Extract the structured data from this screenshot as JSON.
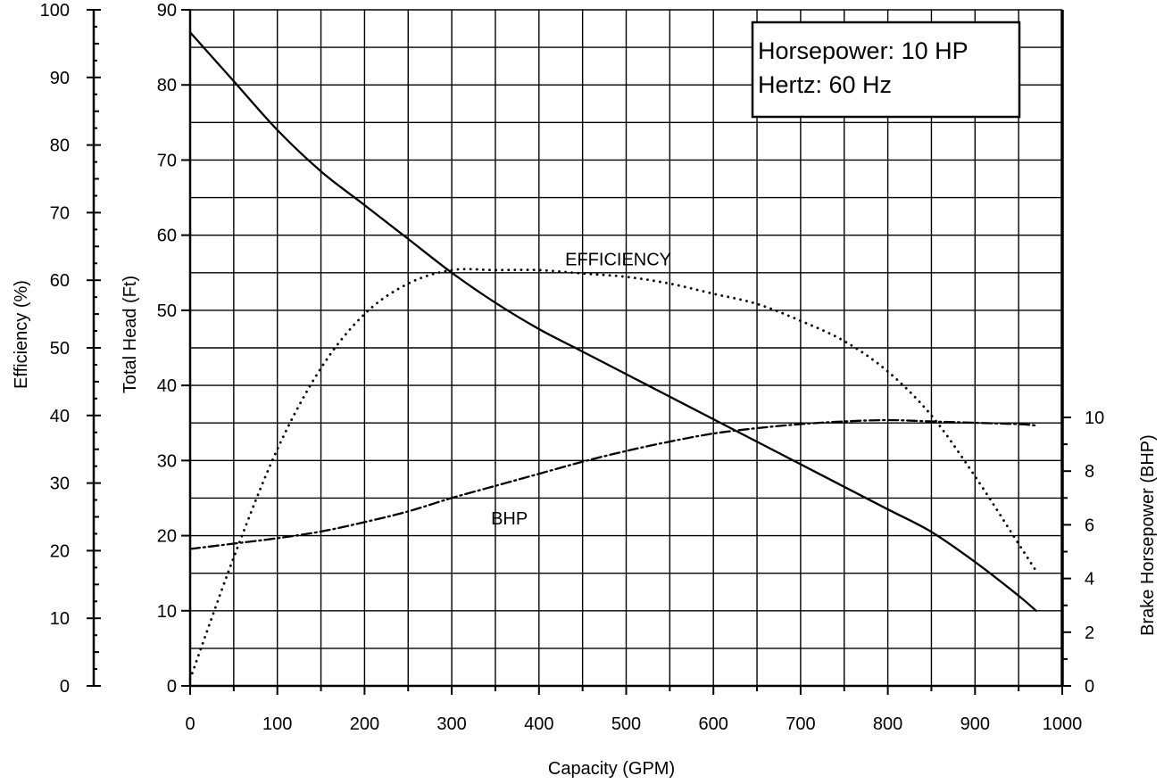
{
  "chart_data": {
    "type": "line",
    "xlabel": "Capacity (GPM)",
    "xlim": [
      0,
      1000
    ],
    "x_ticks": [
      "0",
      "100",
      "200",
      "300",
      "400",
      "500",
      "600",
      "700",
      "800",
      "900",
      "1000"
    ],
    "axes": {
      "head": {
        "label": "Total Head (Ft)",
        "lim": [
          0,
          90
        ],
        "ticks": [
          "0",
          "10",
          "20",
          "30",
          "40",
          "50",
          "60",
          "70",
          "80",
          "90"
        ]
      },
      "efficiency": {
        "label": "Efficiency (%)",
        "lim": [
          0,
          100
        ],
        "ticks": [
          "0",
          "10",
          "20",
          "30",
          "40",
          "50",
          "60",
          "70",
          "80",
          "90",
          "100"
        ]
      },
      "bhp": {
        "label": "Brake Horsepower (BHP)",
        "lim": [
          0,
          10
        ],
        "ticks": [
          "0",
          "2",
          "4",
          "6",
          "8",
          "10"
        ]
      }
    },
    "grid": true,
    "series": [
      {
        "name": "HEAD",
        "axis": "head",
        "style": "solid",
        "x": [
          0,
          50,
          100,
          150,
          200,
          250,
          300,
          350,
          400,
          450,
          500,
          550,
          600,
          650,
          700,
          750,
          800,
          850,
          900,
          950,
          970
        ],
        "y": [
          87,
          80.5,
          74,
          68.5,
          64,
          59.5,
          55,
          51,
          47.5,
          44.5,
          41.5,
          38.5,
          35.5,
          32.5,
          29.5,
          26.5,
          23.5,
          20.5,
          16.5,
          12,
          10
        ]
      },
      {
        "name": "EFFICIENCY",
        "axis": "efficiency",
        "style": "dotted",
        "x": [
          0,
          50,
          100,
          150,
          200,
          250,
          300,
          350,
          400,
          450,
          500,
          550,
          600,
          650,
          700,
          750,
          800,
          850,
          900,
          950,
          970
        ],
        "y": [
          1,
          19,
          35,
          47,
          55,
          59.5,
          61.5,
          61.5,
          61.5,
          61,
          60.5,
          59.5,
          58,
          56.5,
          54,
          51,
          46.5,
          40,
          31,
          21,
          17
        ]
      },
      {
        "name": "BHP",
        "axis": "bhp",
        "style": "dashdot",
        "x": [
          0,
          50,
          100,
          150,
          200,
          250,
          300,
          350,
          400,
          450,
          500,
          550,
          600,
          650,
          700,
          750,
          800,
          850,
          900,
          950,
          970
        ],
        "y": [
          5.1,
          5.3,
          5.5,
          5.75,
          6.1,
          6.5,
          7.0,
          7.45,
          7.9,
          8.35,
          8.75,
          9.1,
          9.4,
          9.6,
          9.75,
          9.85,
          9.9,
          9.85,
          9.8,
          9.75,
          9.7
        ]
      }
    ],
    "annotations": [
      {
        "text": "EFFICIENCY",
        "x": 430,
        "y_head": 56
      },
      {
        "text": "BHP",
        "x": 345,
        "y_head": 21.5
      }
    ]
  },
  "info_box": {
    "line1": "Horsepower: 10 HP",
    "line2": "Hertz: 60 Hz"
  }
}
